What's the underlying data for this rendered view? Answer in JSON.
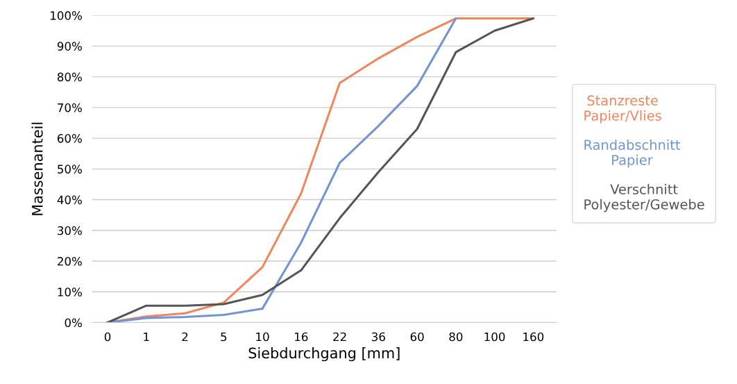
{
  "chart_data": {
    "type": "line",
    "xlabel": "Siebdurchgang [mm]",
    "ylabel": "Massenanteil",
    "categories": [
      "0",
      "1",
      "2",
      "5",
      "10",
      "16",
      "22",
      "36",
      "60",
      "80",
      "100",
      "160"
    ],
    "ylim": [
      0,
      100
    ],
    "yticks": [
      {
        "value": 0,
        "label": "0%"
      },
      {
        "value": 10,
        "label": "10%"
      },
      {
        "value": 20,
        "label": "20%"
      },
      {
        "value": 30,
        "label": "30%"
      },
      {
        "value": 40,
        "label": "40%"
      },
      {
        "value": 50,
        "label": "50%"
      },
      {
        "value": 60,
        "label": "60%"
      },
      {
        "value": 70,
        "label": "70%"
      },
      {
        "value": 80,
        "label": "80%"
      },
      {
        "value": 90,
        "label": "90%"
      },
      {
        "value": 100,
        "label": "100%"
      }
    ],
    "grid": "y",
    "legend": "right",
    "marker": "none",
    "line_style": "solid",
    "series": [
      {
        "name": "Stanzreste\nPapier/Vlies",
        "color": "#f0865a",
        "values": [
          0,
          2,
          3,
          6.5,
          18,
          42,
          78,
          86,
          93,
          99,
          99,
          99
        ]
      },
      {
        "name": "Randabschnitt\nPapier",
        "color": "#7094d4",
        "values": [
          0,
          1.5,
          1.8,
          2.5,
          4.5,
          26,
          52,
          64,
          77,
          99,
          null,
          null
        ]
      },
      {
        "name": "Verschnitt\nPolyester/Gewebe",
        "color": "#555555",
        "values": [
          0,
          5.5,
          5.5,
          6,
          9,
          17,
          34,
          49,
          63,
          88,
          95,
          99
        ]
      }
    ]
  }
}
